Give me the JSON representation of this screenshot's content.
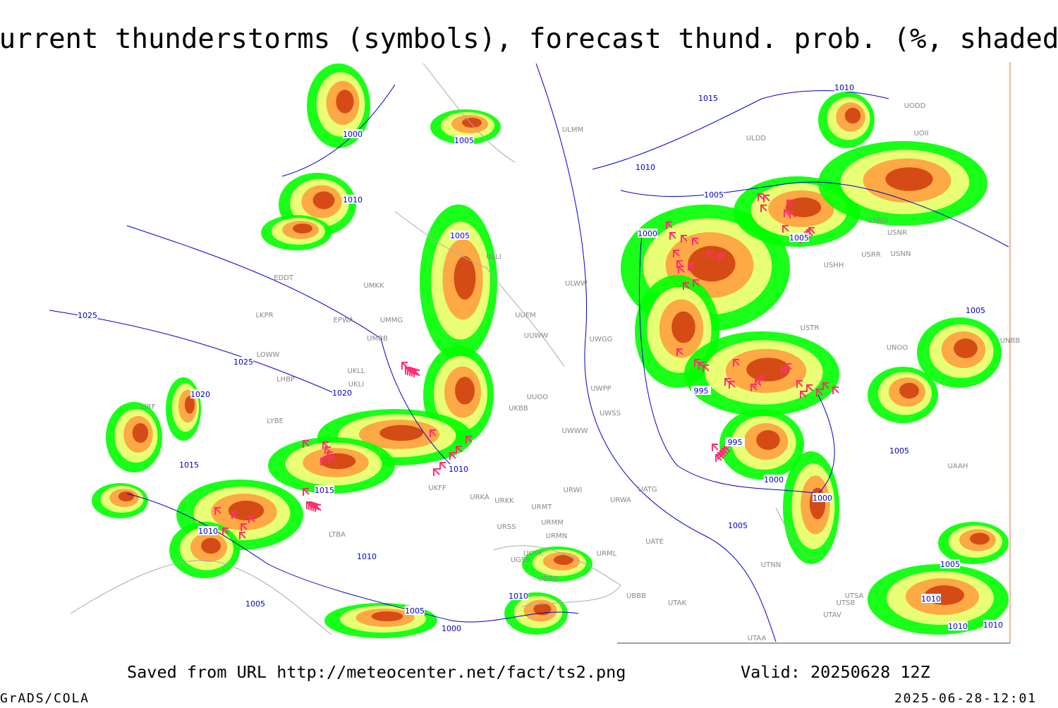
{
  "header": {
    "title": "Current thunderstorms (symbols), forecast thund. prob. (%, shaded)"
  },
  "isobar_labels": [
    "1000",
    "1005",
    "1010",
    "1005",
    "1025",
    "1025",
    "1020",
    "1020",
    "1015",
    "1015",
    "1010",
    "1010",
    "1010",
    "1005",
    "1005",
    "1000",
    "1010",
    "1015",
    "1010",
    "1010",
    "1005",
    "1000",
    "1005",
    "995",
    "995",
    "1000",
    "1000",
    "1005",
    "1005",
    "1005",
    "1005",
    "1010",
    "1010",
    "1010"
  ],
  "station_labels": [
    "ULMM",
    "ULDD",
    "UODD",
    "UOII",
    "ULLI",
    "UMKK",
    "EDDT",
    "EPWA",
    "UMMG",
    "UMBB",
    "UUEM",
    "UUWW",
    "UWGG",
    "ULWW",
    "LKPR",
    "LOWW",
    "LHBP",
    "UKLL",
    "UKLI",
    "UUOO",
    "UWPP",
    "UWSS",
    "UWWW",
    "USRR",
    "USNN",
    "USRO",
    "USNR",
    "USHH",
    "USTR",
    "UNOO",
    "UNBB",
    "UAAH",
    "UATG",
    "UATE",
    "UTNN",
    "UTAK",
    "UTSA",
    "UTSB",
    "UTAV",
    "UTAA",
    "URSS",
    "URMM",
    "URMN",
    "URML",
    "URMT",
    "URKK",
    "URKA",
    "URWI",
    "URWA",
    "UKFF",
    "UGSB",
    "UGSK",
    "UBBB",
    "UDSG",
    "LTBA",
    "LYBE",
    "LIRF",
    "UKBB"
  ],
  "footer": {
    "source": "Saved from URL http://meteocenter.net/fact/ts2.png",
    "valid": "Valid: 20250628 12Z",
    "software": "GrADS/COLA",
    "timestamp": "2025-06-28-12:01"
  }
}
